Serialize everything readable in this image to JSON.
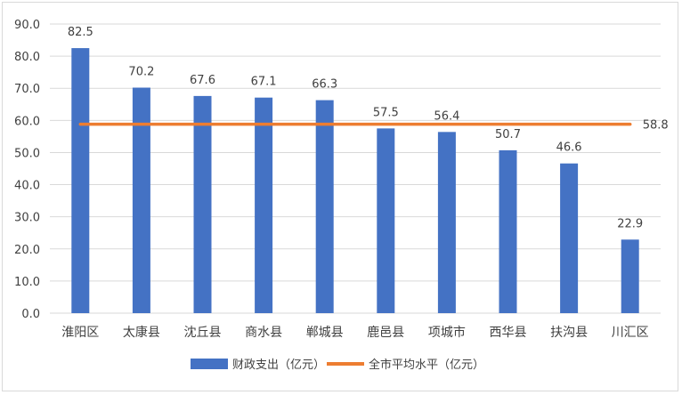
{
  "chart_data": {
    "type": "bar",
    "categories": [
      "淮阳区",
      "太康县",
      "沈丘县",
      "商水县",
      "郸城县",
      "鹿邑县",
      "项城市",
      "西华县",
      "扶沟县",
      "川汇区"
    ],
    "series": [
      {
        "name": "财政支出（亿元）",
        "type": "bar",
        "color": "#4472C4",
        "values": [
          82.5,
          70.2,
          67.6,
          67.1,
          66.3,
          57.5,
          56.4,
          50.7,
          46.6,
          22.9
        ],
        "labels": [
          "82.5",
          "70.2",
          "67.6",
          "67.1",
          "66.3",
          "57.5",
          "56.4",
          "50.7",
          "46.6",
          "22.9"
        ]
      },
      {
        "name": "全市平均水平（亿元）",
        "type": "line",
        "color": "#ED7D31",
        "value": 58.8,
        "label": "58.8"
      }
    ],
    "ylim": [
      0,
      90
    ],
    "yticks": [
      "0.0",
      "10.0",
      "20.0",
      "30.0",
      "40.0",
      "50.0",
      "60.0",
      "70.0",
      "80.0",
      "90.0"
    ],
    "grid": true,
    "legend": "bottom"
  }
}
